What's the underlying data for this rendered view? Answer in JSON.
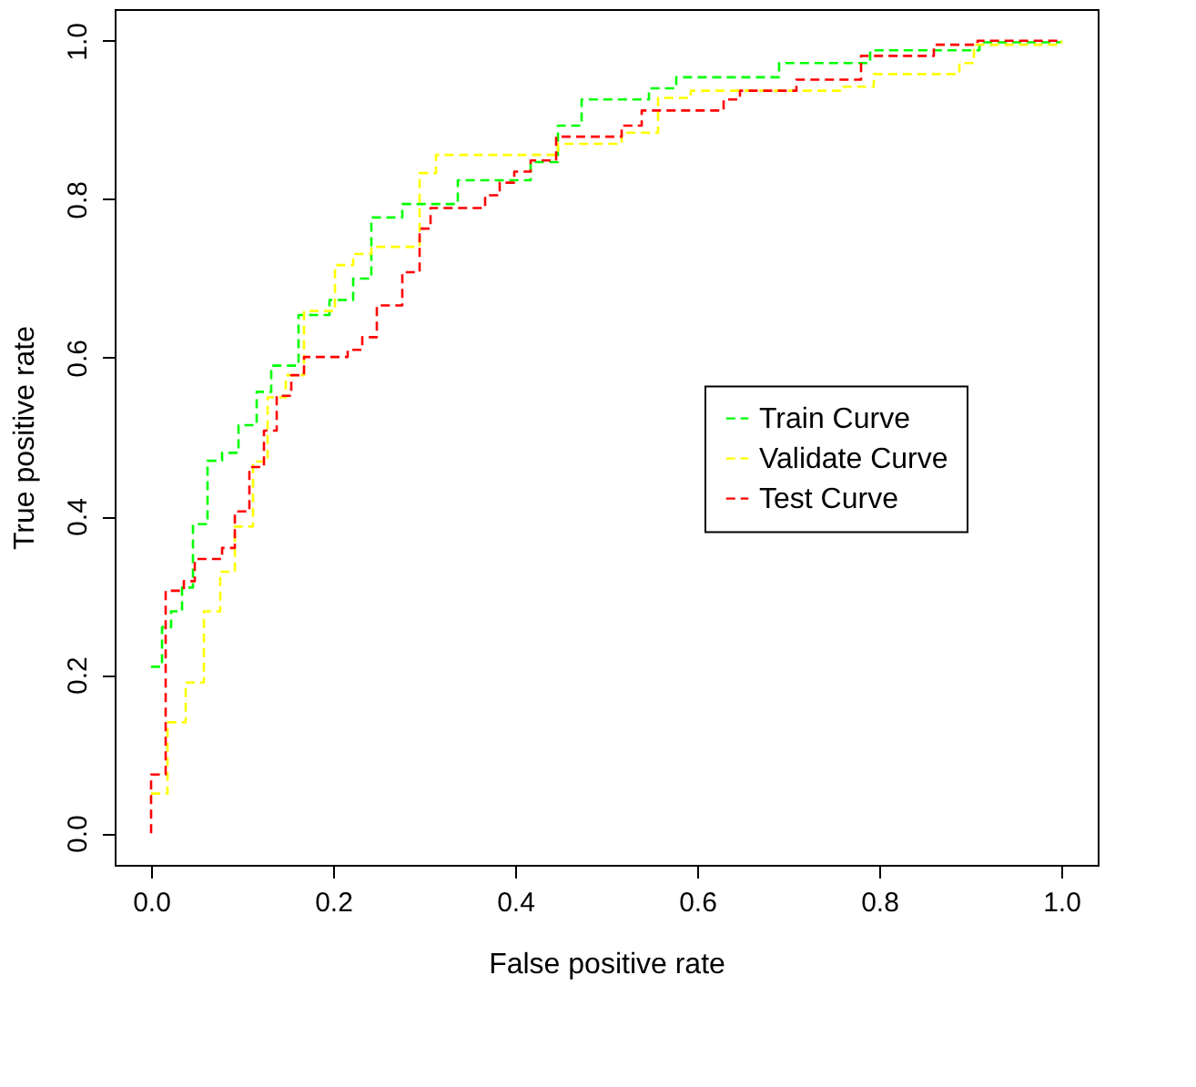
{
  "chart_data": {
    "type": "step",
    "xlabel": "False positive rate",
    "ylabel": "True positive rate",
    "xlim": [
      -0.04,
      1.04
    ],
    "ylim": [
      -0.04,
      1.04
    ],
    "xticks": [
      {
        "value": 0,
        "label": "0.0"
      },
      0.2,
      0.4,
      0.6,
      0.8,
      {
        "value": 1,
        "label": "1.0"
      }
    ],
    "yticks": [
      {
        "value": 0,
        "label": "0.0"
      },
      0.2,
      0.4,
      0.6,
      0.8,
      {
        "value": 1,
        "label": "1.0"
      }
    ],
    "grid": false,
    "legend": "right",
    "line_style": "dashed",
    "marker": "none",
    "series": [
      {
        "name": "Train Curve",
        "color": "#00ff00",
        "x": [
          0,
          0.012,
          0.022,
          0.034,
          0.046,
          0.062,
          0.078,
          0.096,
          0.116,
          0.132,
          0.162,
          0.196,
          0.222,
          0.242,
          0.276,
          0.337,
          0.417,
          0.447,
          0.473,
          0.547,
          0.577,
          0.69,
          0.79,
          0.91,
          1
        ],
        "values": [
          0.21,
          0.26,
          0.28,
          0.31,
          0.39,
          0.47,
          0.48,
          0.515,
          0.557,
          0.59,
          0.654,
          0.673,
          0.7,
          0.777,
          0.794,
          0.824,
          0.847,
          0.893,
          0.926,
          0.94,
          0.954,
          0.972,
          0.988,
          0.998,
          1
        ]
      },
      {
        "name": "Validate Curve",
        "color": "#ffff00",
        "x": [
          0,
          0.018,
          0.038,
          0.058,
          0.076,
          0.092,
          0.112,
          0.128,
          0.148,
          0.168,
          0.202,
          0.222,
          0.242,
          0.295,
          0.313,
          0.447,
          0.517,
          0.557,
          0.593,
          0.757,
          0.794,
          0.888,
          0.904,
          1
        ],
        "values": [
          0.05,
          0.14,
          0.19,
          0.28,
          0.33,
          0.387,
          0.469,
          0.55,
          0.578,
          0.659,
          0.717,
          0.731,
          0.74,
          0.833,
          0.856,
          0.87,
          0.884,
          0.928,
          0.937,
          0.942,
          0.958,
          0.972,
          0.995,
          1
        ]
      },
      {
        "name": "Test Curve",
        "color": "#ff0000",
        "x": [
          0,
          0,
          0.016,
          0.036,
          0.048,
          0.078,
          0.092,
          0.108,
          0.124,
          0.138,
          0.154,
          0.168,
          0.216,
          0.232,
          0.248,
          0.276,
          0.295,
          0.307,
          0.367,
          0.383,
          0.399,
          0.417,
          0.445,
          0.517,
          0.539,
          0.629,
          0.647,
          0.709,
          0.78,
          0.86,
          0.908,
          1
        ],
        "values": [
          0,
          0.074,
          0.306,
          0.318,
          0.346,
          0.36,
          0.406,
          0.462,
          0.508,
          0.552,
          0.578,
          0.601,
          0.61,
          0.626,
          0.666,
          0.708,
          0.763,
          0.789,
          0.805,
          0.821,
          0.835,
          0.849,
          0.879,
          0.893,
          0.912,
          0.926,
          0.937,
          0.951,
          0.981,
          0.995,
          1,
          1
        ]
      }
    ]
  }
}
